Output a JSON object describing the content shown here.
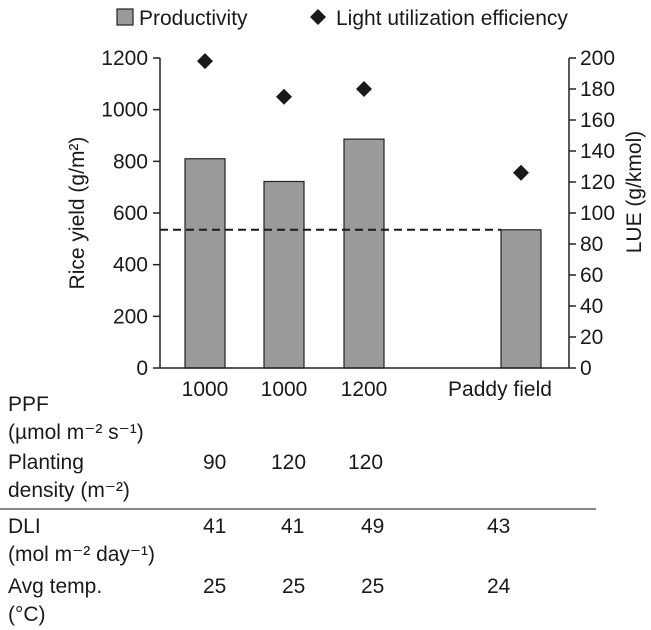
{
  "chart_data": {
    "type": "bar",
    "categories": [
      "1000",
      "1000",
      "1200",
      "Paddy field"
    ],
    "legend": {
      "placement": "top",
      "items": [
        {
          "label": "Productivity",
          "marker": "square"
        },
        {
          "label": "Light utilization efficiency",
          "marker": "diamond"
        }
      ]
    },
    "series": [
      {
        "name": "Productivity",
        "axis": "left",
        "style": "bar",
        "values": [
          810,
          722,
          886,
          535
        ]
      },
      {
        "name": "Light utilization efficiency",
        "axis": "right",
        "style": "marker",
        "values": [
          198,
          175,
          180,
          126
        ]
      }
    ],
    "reference_line": {
      "axis": "left",
      "value": 535,
      "style": "dashed"
    },
    "ylabel": "Rice yield (g/m²)",
    "y2label": "LUE (g/kmol)",
    "ylim": [
      0,
      1200
    ],
    "y2lim": [
      0,
      200
    ],
    "yticks": [
      0,
      200,
      400,
      600,
      800,
      1000,
      1200
    ],
    "y2ticks": [
      0,
      20,
      40,
      60,
      80,
      100,
      120,
      140,
      160,
      180,
      200
    ],
    "grid": false,
    "colors": {
      "bar": "#9a9a9a",
      "bar_edge": "#222222",
      "marker": "#1a1a1a",
      "axis": "#222222"
    }
  },
  "table": {
    "rows": [
      {
        "label1": "PPF",
        "label2": "(µmol m⁻² s⁻¹)",
        "values": [
          "",
          "",
          "",
          ""
        ]
      },
      {
        "label1": "Planting",
        "label2": "density (m⁻²)",
        "values": [
          "90",
          "120",
          "120",
          ""
        ]
      },
      {
        "label1": "DLI",
        "label2": "(mol m⁻² day⁻¹)",
        "values": [
          "41",
          "41",
          "49",
          "43"
        ]
      },
      {
        "label1": "Avg temp.",
        "label2": "(°C)",
        "values": [
          "25",
          "25",
          "25",
          "24"
        ]
      }
    ]
  }
}
